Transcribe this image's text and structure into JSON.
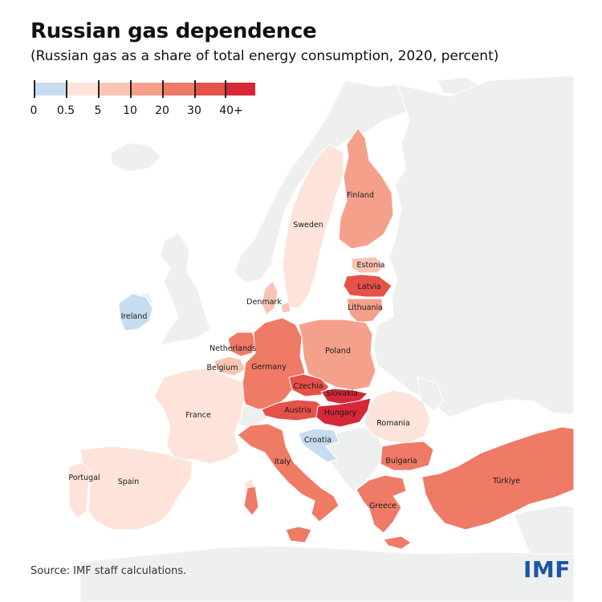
{
  "title": "Russian gas dependence",
  "subtitle": "(Russian gas as a share of total energy consumption, 2020, percent)",
  "legend": {
    "bins": [
      {
        "label": "0",
        "color": "#c7dcef"
      },
      {
        "label": "0.5",
        "color": "#fde3da"
      },
      {
        "label": "5",
        "color": "#f9c4b4"
      },
      {
        "label": "10",
        "color": "#f5a08b"
      },
      {
        "label": "20",
        "color": "#ef7a66"
      },
      {
        "label": "30",
        "color": "#e65149"
      },
      {
        "label": "40+",
        "color": "#d62839"
      }
    ]
  },
  "colors": {
    "neutral_land": "#eef0ef",
    "sea": "#ffffff",
    "border": "#ffffff"
  },
  "countries": [
    {
      "name": "Finland",
      "color": "#f5a08b"
    },
    {
      "name": "Sweden",
      "color": "#fde3da"
    },
    {
      "name": "Estonia",
      "color": "#f9c4b4"
    },
    {
      "name": "Latvia",
      "color": "#e65149"
    },
    {
      "name": "Lithuania",
      "color": "#f5a08b"
    },
    {
      "name": "Denmark",
      "color": "#f9c4b4"
    },
    {
      "name": "Ireland",
      "color": "#c7dcef"
    },
    {
      "name": "Netherlands",
      "color": "#ef7a66"
    },
    {
      "name": "Belgium",
      "color": "#f9c4b4"
    },
    {
      "name": "Germany",
      "color": "#ef7a66"
    },
    {
      "name": "Poland",
      "color": "#f5a08b"
    },
    {
      "name": "Czechia",
      "color": "#e65149"
    },
    {
      "name": "Slovakia",
      "color": "#d62839"
    },
    {
      "name": "Austria",
      "color": "#e65149"
    },
    {
      "name": "Hungary",
      "color": "#d62839"
    },
    {
      "name": "France",
      "color": "#fde3da"
    },
    {
      "name": "Croatia",
      "color": "#c7dcef"
    },
    {
      "name": "Romania",
      "color": "#fde3da"
    },
    {
      "name": "Bulgaria",
      "color": "#ef7a66"
    },
    {
      "name": "Italy",
      "color": "#ef7a66"
    },
    {
      "name": "Portugal",
      "color": "#fde3da"
    },
    {
      "name": "Spain",
      "color": "#fde3da"
    },
    {
      "name": "Greece",
      "color": "#ef7a66"
    },
    {
      "name": "Türkiye",
      "color": "#ef7a66"
    }
  ],
  "source": "Source: IMF staff calculations.",
  "logo": "IMF"
}
